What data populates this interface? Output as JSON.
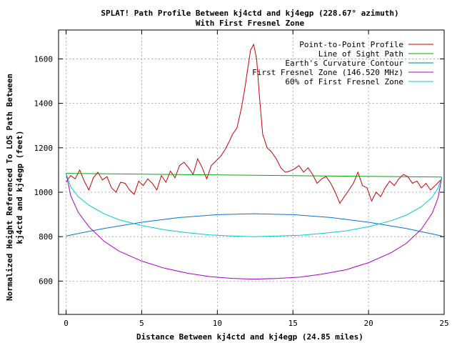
{
  "chart_data": {
    "type": "line",
    "title": "SPLAT! Path Profile Between kj4ctd and kj4egp (228.67° azimuth)",
    "subtitle": "With First Fresnel Zone",
    "xlabel": "Distance Between kj4ctd and kj4egp (24.85 miles)",
    "ylabel_line1": "Normalized Height Referenced To LOS Path Between",
    "ylabel_line2": "kj4ctd and kj4egp (feet)",
    "xlim": [
      -0.5,
      25
    ],
    "ylim": [
      450,
      1730
    ],
    "xticks": [
      0,
      5,
      10,
      15,
      20,
      25
    ],
    "yticks": [
      600,
      800,
      1000,
      1200,
      1400,
      1600
    ],
    "grid": true,
    "legend_position": "top-right",
    "series": [
      {
        "name": "Point-to-Point Profile",
        "color": "#cc0000",
        "x": [
          0,
          0.3,
          0.6,
          0.9,
          1.2,
          1.5,
          1.8,
          2.1,
          2.4,
          2.7,
          3.0,
          3.3,
          3.6,
          3.9,
          4.2,
          4.5,
          4.8,
          5.1,
          5.4,
          5.7,
          6.0,
          6.3,
          6.6,
          6.9,
          7.2,
          7.5,
          7.8,
          8.1,
          8.4,
          8.7,
          9.0,
          9.3,
          9.6,
          9.9,
          10.2,
          10.5,
          10.8,
          11.0,
          11.3,
          11.6,
          11.8,
          12.0,
          12.2,
          12.4,
          12.6,
          12.8,
          13.0,
          13.3,
          13.6,
          13.9,
          14.2,
          14.5,
          14.8,
          15.1,
          15.4,
          15.7,
          16.0,
          16.3,
          16.6,
          16.9,
          17.2,
          17.5,
          17.8,
          18.1,
          18.4,
          18.7,
          19.0,
          19.3,
          19.6,
          19.9,
          20.2,
          20.5,
          20.8,
          21.1,
          21.4,
          21.7,
          22.0,
          22.3,
          22.6,
          22.9,
          23.2,
          23.5,
          23.8,
          24.1,
          24.4,
          24.7,
          24.85
        ],
        "y": [
          1045,
          1075,
          1060,
          1100,
          1050,
          1010,
          1065,
          1090,
          1055,
          1070,
          1020,
          1000,
          1045,
          1040,
          1010,
          990,
          1050,
          1030,
          1060,
          1040,
          1010,
          1075,
          1045,
          1095,
          1065,
          1120,
          1135,
          1110,
          1080,
          1150,
          1110,
          1060,
          1120,
          1140,
          1160,
          1190,
          1230,
          1260,
          1290,
          1380,
          1460,
          1550,
          1640,
          1665,
          1600,
          1420,
          1260,
          1200,
          1180,
          1150,
          1110,
          1090,
          1095,
          1105,
          1120,
          1090,
          1110,
          1080,
          1040,
          1060,
          1070,
          1040,
          1000,
          950,
          980,
          1010,
          1040,
          1090,
          1030,
          1020,
          960,
          1000,
          980,
          1020,
          1050,
          1030,
          1060,
          1080,
          1070,
          1040,
          1050,
          1020,
          1040,
          1010,
          1030,
          1050,
          1060
        ]
      },
      {
        "name": "Line of Sight Path",
        "color": "#00aa00",
        "x": [
          0,
          24.85
        ],
        "y": [
          1085,
          1068
        ]
      },
      {
        "name": "Earth's Curvature Contour",
        "color": "#0077cc",
        "x": [
          0,
          2.5,
          5,
          7.5,
          10,
          12.425,
          15,
          17.5,
          20,
          22.5,
          24.85
        ],
        "y": [
          803,
          837,
          865,
          886,
          899,
          903,
          899,
          886,
          865,
          837,
          803
        ]
      },
      {
        "name": "First Fresnel Zone (146.520 MHz)",
        "color": "#aa00cc",
        "x": [
          0,
          0.3,
          0.8,
          1.5,
          2.5,
          3.5,
          5,
          6.5,
          8,
          9.5,
          11,
          12.425,
          14,
          15.5,
          17,
          18.5,
          20,
          21.5,
          22.5,
          23.5,
          24.2,
          24.6,
          24.85
        ],
        "y": [
          1085,
          985,
          910,
          845,
          780,
          735,
          690,
          658,
          636,
          620,
          612,
          609,
          612,
          618,
          632,
          651,
          683,
          728,
          770,
          834,
          905,
          975,
          1068
        ]
      },
      {
        "name": "60% of First Fresnel Zone",
        "color": "#00cccc",
        "x": [
          0,
          0.3,
          0.8,
          1.5,
          2.5,
          3.5,
          5,
          6.5,
          8,
          9.5,
          11,
          12.425,
          14,
          15.5,
          17,
          18.5,
          20,
          21.5,
          22.5,
          23.5,
          24.2,
          24.6,
          24.85
        ],
        "y": [
          1085,
          1025,
          980,
          942,
          903,
          876,
          850,
          831,
          818,
          808,
          803,
          800,
          803,
          806,
          815,
          826,
          845,
          872,
          897,
          935,
          977,
          1018,
          1068
        ]
      }
    ]
  }
}
